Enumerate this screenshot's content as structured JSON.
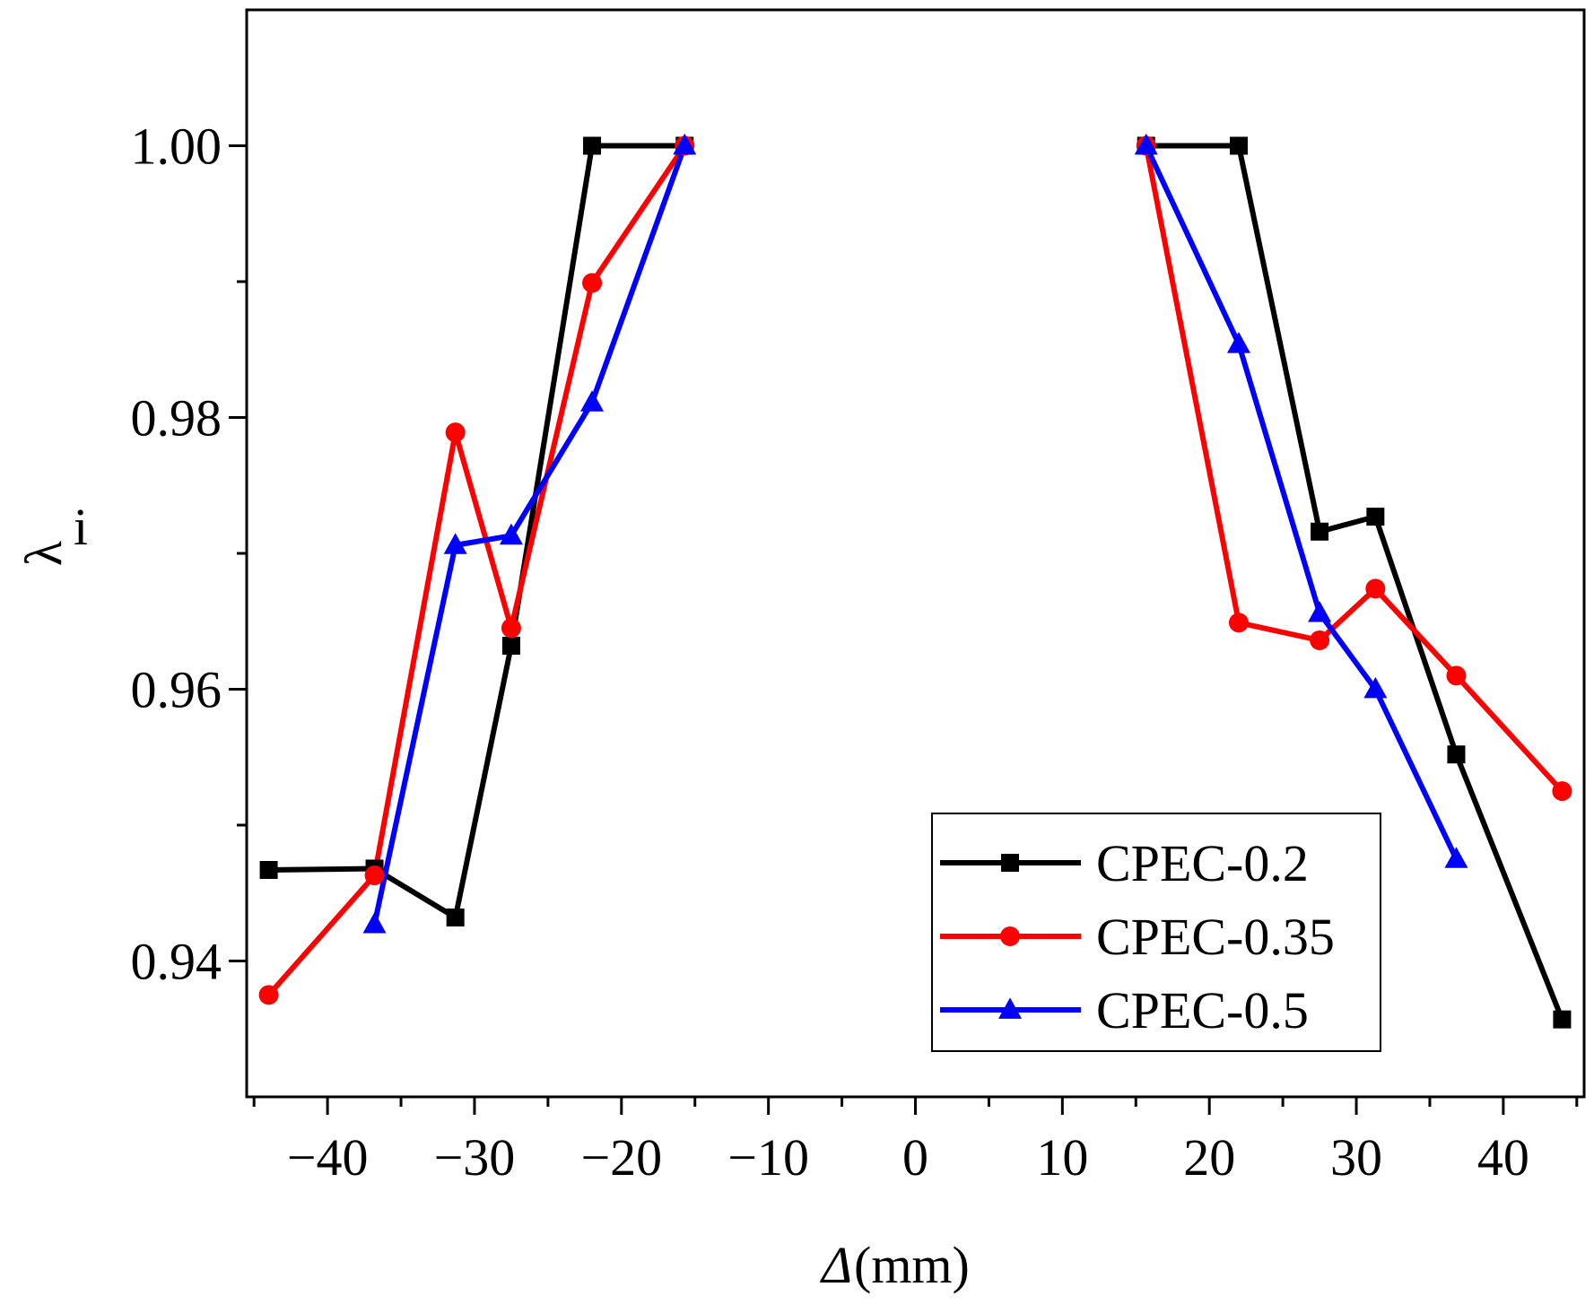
{
  "chart_data": {
    "type": "line",
    "title": "",
    "xlabel": "Δ",
    "xlabel_unit": "(mm)",
    "ylabel": "λ",
    "ylabel_subscript": "i",
    "xlim": [
      -45.5,
      45.5
    ],
    "ylim": [
      0.93,
      1.01
    ],
    "x_ticks": [
      -40,
      -30,
      -20,
      -10,
      0,
      10,
      20,
      30,
      40
    ],
    "x_tick_labels": [
      "−40",
      "−30",
      "−20",
      "−10",
      "0",
      "10",
      "20",
      "30",
      "40"
    ],
    "x_minor_ticks": [
      -45,
      -35,
      -25,
      -15,
      -5,
      5,
      15,
      25,
      35,
      45
    ],
    "y_ticks": [
      0.94,
      0.96,
      0.98,
      1.0
    ],
    "y_tick_labels": [
      "0.94",
      "0.96",
      "0.98",
      "1.00"
    ],
    "y_minor_ticks": [
      0.95,
      0.97,
      0.99
    ],
    "grid": false,
    "legend_position": "bottom-right",
    "series": [
      {
        "name": "CPEC-0.2",
        "color": "#000000",
        "marker": "square",
        "segments": [
          [
            [
              -44.0,
              0.9467
            ],
            [
              -36.8,
              0.9468
            ],
            [
              -31.3,
              0.9432
            ],
            [
              -27.5,
              0.9632
            ],
            [
              -22.0,
              1.0
            ],
            [
              -15.7,
              1.0
            ]
          ],
          [
            [
              15.7,
              1.0
            ],
            [
              22.0,
              1.0
            ],
            [
              27.5,
              0.9716
            ],
            [
              31.3,
              0.9727
            ],
            [
              36.8,
              0.9552
            ],
            [
              44.0,
              0.9357
            ]
          ]
        ]
      },
      {
        "name": "CPEC-0.35",
        "color": "#ff0000",
        "marker": "circle",
        "segments": [
          [
            [
              -44.0,
              0.9375
            ],
            [
              -36.8,
              0.9463
            ],
            [
              -31.3,
              0.9789
            ],
            [
              -27.5,
              0.9645
            ],
            [
              -22.0,
              0.9899
            ],
            [
              -15.7,
              1.0
            ]
          ],
          [
            [
              15.7,
              1.0
            ],
            [
              22.0,
              0.9649
            ],
            [
              27.5,
              0.9636
            ],
            [
              31.3,
              0.9674
            ],
            [
              36.8,
              0.961
            ],
            [
              44.0,
              0.9525
            ]
          ]
        ]
      },
      {
        "name": "CPEC-0.5",
        "color": "#0000ff",
        "marker": "triangle",
        "segments": [
          [
            [
              -36.8,
              0.9427
            ],
            [
              -31.3,
              0.9706
            ],
            [
              -27.5,
              0.9713
            ],
            [
              -22.0,
              0.9811
            ],
            [
              -15.7,
              1.0
            ]
          ],
          [
            [
              15.7,
              1.0
            ],
            [
              22.0,
              0.9854
            ],
            [
              27.5,
              0.9656
            ],
            [
              31.3,
              0.96
            ],
            [
              36.8,
              0.9475
            ]
          ]
        ]
      }
    ]
  }
}
